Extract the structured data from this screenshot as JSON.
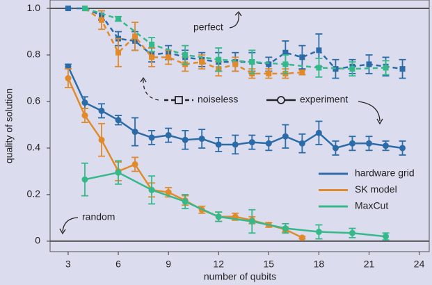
{
  "chart_data": {
    "type": "line",
    "x_label": "number of qubits",
    "y_label": "quality of solution",
    "xlim": [
      1.92,
      24.6
    ],
    "ylim": [
      -0.045,
      1.036
    ],
    "xticks": [
      3,
      6,
      9,
      12,
      15,
      18,
      21,
      24
    ],
    "yticks": [
      0,
      0.2,
      0.4,
      0.6,
      0.8,
      {
        "value": 1,
        "label": "1.0"
      }
    ],
    "reference_lines": [
      {
        "value": 1,
        "label": "perfect"
      },
      {
        "value": 0,
        "label": "random"
      }
    ],
    "line_styles": [
      {
        "key": "noiseless",
        "label": "noiseless",
        "dashed": true,
        "marker": "square"
      },
      {
        "key": "experiment",
        "label": "experiment",
        "dashed": false,
        "marker": "circle"
      }
    ],
    "legend": "lower right",
    "series": [
      {
        "name": "hardware grid",
        "color": "#2b6ca8",
        "noiseless": {
          "x": [
            3,
            4,
            5,
            6,
            7,
            8,
            9,
            10,
            11,
            12,
            13,
            14,
            15,
            16,
            17,
            18,
            19,
            20,
            21,
            22,
            23
          ],
          "values": [
            1.0,
            1.0,
            0.97,
            0.87,
            0.86,
            0.8,
            0.81,
            0.79,
            0.78,
            0.77,
            0.77,
            0.77,
            0.76,
            0.81,
            0.79,
            0.82,
            0.74,
            0.75,
            0.76,
            0.75,
            0.74
          ],
          "errors": [
            0,
            0,
            0.02,
            0.03,
            0.04,
            0.03,
            0.03,
            0.03,
            0.03,
            0.04,
            0.04,
            0.04,
            0.03,
            0.05,
            0.05,
            0.07,
            0.04,
            0.03,
            0.04,
            0.04,
            0.04
          ]
        },
        "experiment": {
          "x": [
            3,
            4,
            5,
            6,
            7,
            8,
            9,
            10,
            11,
            12,
            13,
            14,
            15,
            16,
            17,
            18,
            19,
            20,
            21,
            22,
            23
          ],
          "values": [
            0.75,
            0.595,
            0.56,
            0.52,
            0.47,
            0.445,
            0.455,
            0.435,
            0.44,
            0.415,
            0.415,
            0.425,
            0.42,
            0.45,
            0.42,
            0.465,
            0.4,
            0.42,
            0.42,
            0.41,
            0.4
          ],
          "errors": [
            0.01,
            0.025,
            0.03,
            0.02,
            0.06,
            0.03,
            0.03,
            0.04,
            0.04,
            0.03,
            0.04,
            0.03,
            0.03,
            0.05,
            0.04,
            0.05,
            0.03,
            0.03,
            0.03,
            0.02,
            0.03
          ]
        }
      },
      {
        "name": "SK model",
        "color": "#e08a2c",
        "noiseless": {
          "x": [
            4,
            5,
            6,
            7,
            8,
            9,
            10,
            11,
            12,
            13,
            14,
            15,
            16,
            17
          ],
          "values": [
            1.0,
            0.95,
            0.81,
            0.88,
            0.79,
            0.79,
            0.76,
            0.77,
            0.74,
            0.76,
            0.72,
            0.72,
            0.72,
            0.725
          ],
          "errors": [
            0,
            0.04,
            0.06,
            0.06,
            0.04,
            0.03,
            0.03,
            0.03,
            0.03,
            0.03,
            0.02,
            0.02,
            0.02,
            0.01
          ]
        },
        "experiment": {
          "x": [
            3,
            4,
            5,
            6,
            7,
            8,
            9,
            10,
            11,
            12,
            13,
            14,
            15,
            16,
            17
          ],
          "values": [
            0.7,
            0.54,
            0.435,
            0.3,
            0.33,
            0.22,
            0.21,
            0.175,
            0.135,
            0.105,
            0.105,
            0.09,
            0.07,
            0.05,
            0.015
          ],
          "errors": [
            0.04,
            0.03,
            0.07,
            0.04,
            0.03,
            0.03,
            0.02,
            0.02,
            0.015,
            0.02,
            0.015,
            0.015,
            0.01,
            0.01,
            0.005
          ]
        }
      },
      {
        "name": "MaxCut",
        "color": "#35b98a",
        "noiseless": {
          "x": [
            4,
            6,
            8,
            10,
            12,
            14,
            16,
            18,
            20,
            22
          ],
          "values": [
            1.0,
            0.955,
            0.845,
            0.8,
            0.78,
            0.77,
            0.76,
            0.745,
            0.74,
            0.745
          ],
          "errors": [
            0,
            0.01,
            0.03,
            0.04,
            0.05,
            0.05,
            0.04,
            0.04,
            0.03,
            0.03
          ]
        },
        "experiment": {
          "x": [
            4,
            6,
            8,
            10,
            12,
            14,
            16,
            18,
            20,
            22
          ],
          "values": [
            0.265,
            0.295,
            0.22,
            0.17,
            0.105,
            0.085,
            0.055,
            0.04,
            0.035,
            0.02
          ],
          "errors": [
            0.07,
            0.05,
            0.06,
            0.03,
            0.02,
            0.05,
            0.02,
            0.03,
            0.02,
            0.015
          ]
        }
      }
    ]
  }
}
